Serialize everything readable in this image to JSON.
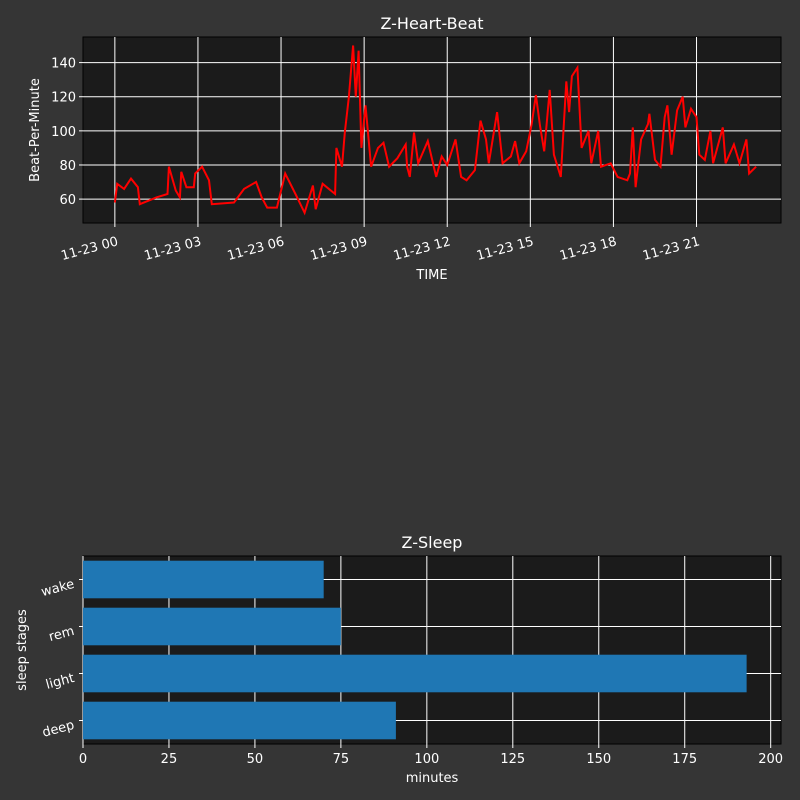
{
  "colors": {
    "background": "#353535",
    "axes_bg": "#1b1b1b",
    "heart_line": "#ff0000",
    "bars": "#1f77b4",
    "grid": "#ffffff"
  },
  "chart_data": [
    {
      "type": "line",
      "title": "Z-Heart-Beat",
      "xlabel": "TIME",
      "ylabel": "Beat-Per-Minute",
      "grid": true,
      "x_tick_labels": [
        "11-23 00",
        "11-23 03",
        "11-23 06",
        "11-23 09",
        "11-23 12",
        "11-23 15",
        "11-23 18",
        "11-23 21"
      ],
      "y_ticks": [
        60,
        80,
        100,
        120,
        140
      ],
      "ylim": [
        46,
        155
      ],
      "xlim": [
        "11-22 22:51",
        "11-24 00:03"
      ],
      "series": [
        {
          "color": "#ff0000",
          "points": [
            [
              "00:00",
              58
            ],
            [
              "00:05",
              69
            ],
            [
              "00:20",
              66
            ],
            [
              "00:35",
              72
            ],
            [
              "00:50",
              67
            ],
            [
              "00:54",
              57
            ],
            [
              "01:30",
              61
            ],
            [
              "01:54",
              63
            ],
            [
              "01:57",
              79
            ],
            [
              "02:12",
              65
            ],
            [
              "02:21",
              61
            ],
            [
              "02:24",
              76
            ],
            [
              "02:35",
              67
            ],
            [
              "02:51",
              67
            ],
            [
              "02:54",
              75
            ],
            [
              "03:09",
              79
            ],
            [
              "03:24",
              71
            ],
            [
              "03:30",
              57
            ],
            [
              "04:18",
              58
            ],
            [
              "04:40",
              66
            ],
            [
              "05:06",
              70
            ],
            [
              "05:18",
              61
            ],
            [
              "05:30",
              55
            ],
            [
              "05:51",
              55
            ],
            [
              "06:09",
              75
            ],
            [
              "06:33",
              62
            ],
            [
              "06:51",
              52
            ],
            [
              "07:09",
              68
            ],
            [
              "07:15",
              54
            ],
            [
              "07:30",
              69
            ],
            [
              "07:57",
              63
            ],
            [
              "08:00",
              90
            ],
            [
              "08:12",
              79
            ],
            [
              "08:18",
              99
            ],
            [
              "08:27",
              120
            ],
            [
              "08:36",
              150
            ],
            [
              "08:42",
              120
            ],
            [
              "08:48",
              147
            ],
            [
              "08:54",
              90
            ],
            [
              "09:03",
              115
            ],
            [
              "09:15",
              79
            ],
            [
              "09:30",
              90
            ],
            [
              "09:42",
              93
            ],
            [
              "09:54",
              79
            ],
            [
              "10:12",
              84
            ],
            [
              "10:30",
              92
            ],
            [
              "10:33",
              79
            ],
            [
              "10:39",
              73
            ],
            [
              "10:48",
              99
            ],
            [
              "10:57",
              81
            ],
            [
              "11:18",
              94
            ],
            [
              "11:36",
              73
            ],
            [
              "11:48",
              85
            ],
            [
              "12:00",
              80
            ],
            [
              "12:18",
              95
            ],
            [
              "12:30",
              73
            ],
            [
              "12:42",
              71
            ],
            [
              "13:00",
              77
            ],
            [
              "13:12",
              106
            ],
            [
              "13:24",
              95
            ],
            [
              "13:30",
              81
            ],
            [
              "13:48",
              111
            ],
            [
              "14:00",
              81
            ],
            [
              "14:18",
              85
            ],
            [
              "14:27",
              94
            ],
            [
              "14:36",
              81
            ],
            [
              "14:51",
              88
            ],
            [
              "15:03",
              104
            ],
            [
              "15:12",
              121
            ],
            [
              "15:21",
              103
            ],
            [
              "15:30",
              88
            ],
            [
              "15:42",
              124
            ],
            [
              "15:51",
              86
            ],
            [
              "16:06",
              73
            ],
            [
              "16:18",
              129
            ],
            [
              "16:24",
              111
            ],
            [
              "16:30",
              132
            ],
            [
              "16:42",
              137
            ],
            [
              "16:51",
              90
            ],
            [
              "17:06",
              100
            ],
            [
              "17:12",
              81
            ],
            [
              "17:27",
              100
            ],
            [
              "17:33",
              79
            ],
            [
              "17:54",
              81
            ],
            [
              "18:09",
              73
            ],
            [
              "18:30",
              71
            ],
            [
              "18:36",
              75
            ],
            [
              "18:42",
              102
            ],
            [
              "18:48",
              67
            ],
            [
              "19:00",
              95
            ],
            [
              "19:15",
              104
            ],
            [
              "19:18",
              110
            ],
            [
              "19:30",
              83
            ],
            [
              "19:42",
              79
            ],
            [
              "19:51",
              108
            ],
            [
              "19:57",
              115
            ],
            [
              "20:06",
              86
            ],
            [
              "20:18",
              112
            ],
            [
              "20:30",
              120
            ],
            [
              "20:36",
              102
            ],
            [
              "20:48",
              113
            ],
            [
              "21:00",
              108
            ],
            [
              "21:06",
              86
            ],
            [
              "21:18",
              83
            ],
            [
              "21:30",
              100
            ],
            [
              "21:36",
              81
            ],
            [
              "21:57",
              102
            ],
            [
              "22:03",
              81
            ],
            [
              "22:21",
              92
            ],
            [
              "22:33",
              81
            ],
            [
              "22:48",
              95
            ],
            [
              "22:54",
              75
            ],
            [
              "23:09",
              79
            ]
          ]
        }
      ]
    },
    {
      "type": "bar",
      "orientation": "horizontal",
      "title": "Z-Sleep",
      "xlabel": "minutes",
      "ylabel": "sleep stages",
      "grid": true,
      "categories": [
        "deep",
        "light",
        "rem",
        "wake"
      ],
      "values": [
        91,
        193,
        75,
        70
      ],
      "x_ticks": [
        0,
        25,
        50,
        75,
        100,
        125,
        150,
        175,
        200
      ],
      "xlim": [
        0,
        203
      ]
    }
  ]
}
